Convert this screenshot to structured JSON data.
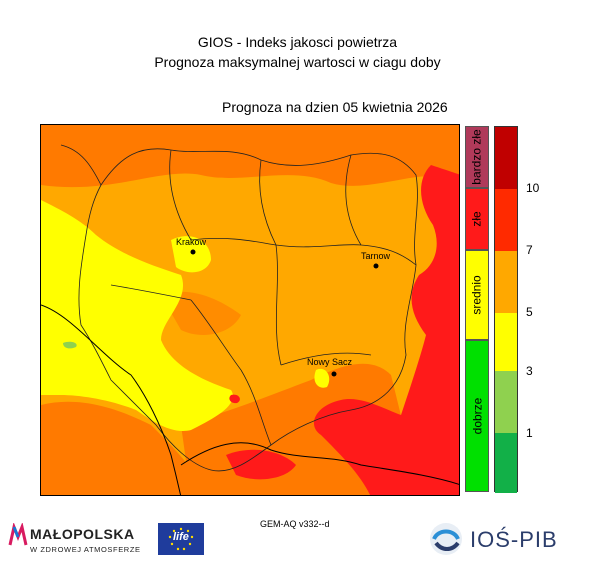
{
  "header": {
    "title1": "GIOS - Indeks jakosci powietrza",
    "title2": "Prognoza maksymalnej wartosci w ciagu doby",
    "forecast_date": "Prognoza na dzien  05 kwietnia 2026"
  },
  "map": {
    "cities": [
      {
        "name": "Krakow"
      },
      {
        "name": "Tarnow"
      },
      {
        "name": "Nowy Sacz"
      }
    ]
  },
  "legend": {
    "categories": [
      {
        "label": "bardzo złe",
        "color": "#b03a5a"
      },
      {
        "label": "złe",
        "color": "#ff1a1a"
      },
      {
        "label": "srednio",
        "color": "#ffff00"
      },
      {
        "label": "dobrze",
        "color": "#00e000"
      }
    ],
    "scale_colors": [
      "#c00000",
      "#ff2a00",
      "#ffa800",
      "#ffff00",
      "#8fd14f",
      "#12b048"
    ],
    "ticks": [
      "10",
      "7",
      "5",
      "3",
      "1"
    ]
  },
  "footer": {
    "model": "GEM-AQ v332--d",
    "malopolska_name": "MAŁOPOLSKA",
    "malopolska_sub": "W ZDROWEJ ATMOSFERZE",
    "eu_logo_text": "life",
    "ios_name": "IOŚ-PIB"
  }
}
